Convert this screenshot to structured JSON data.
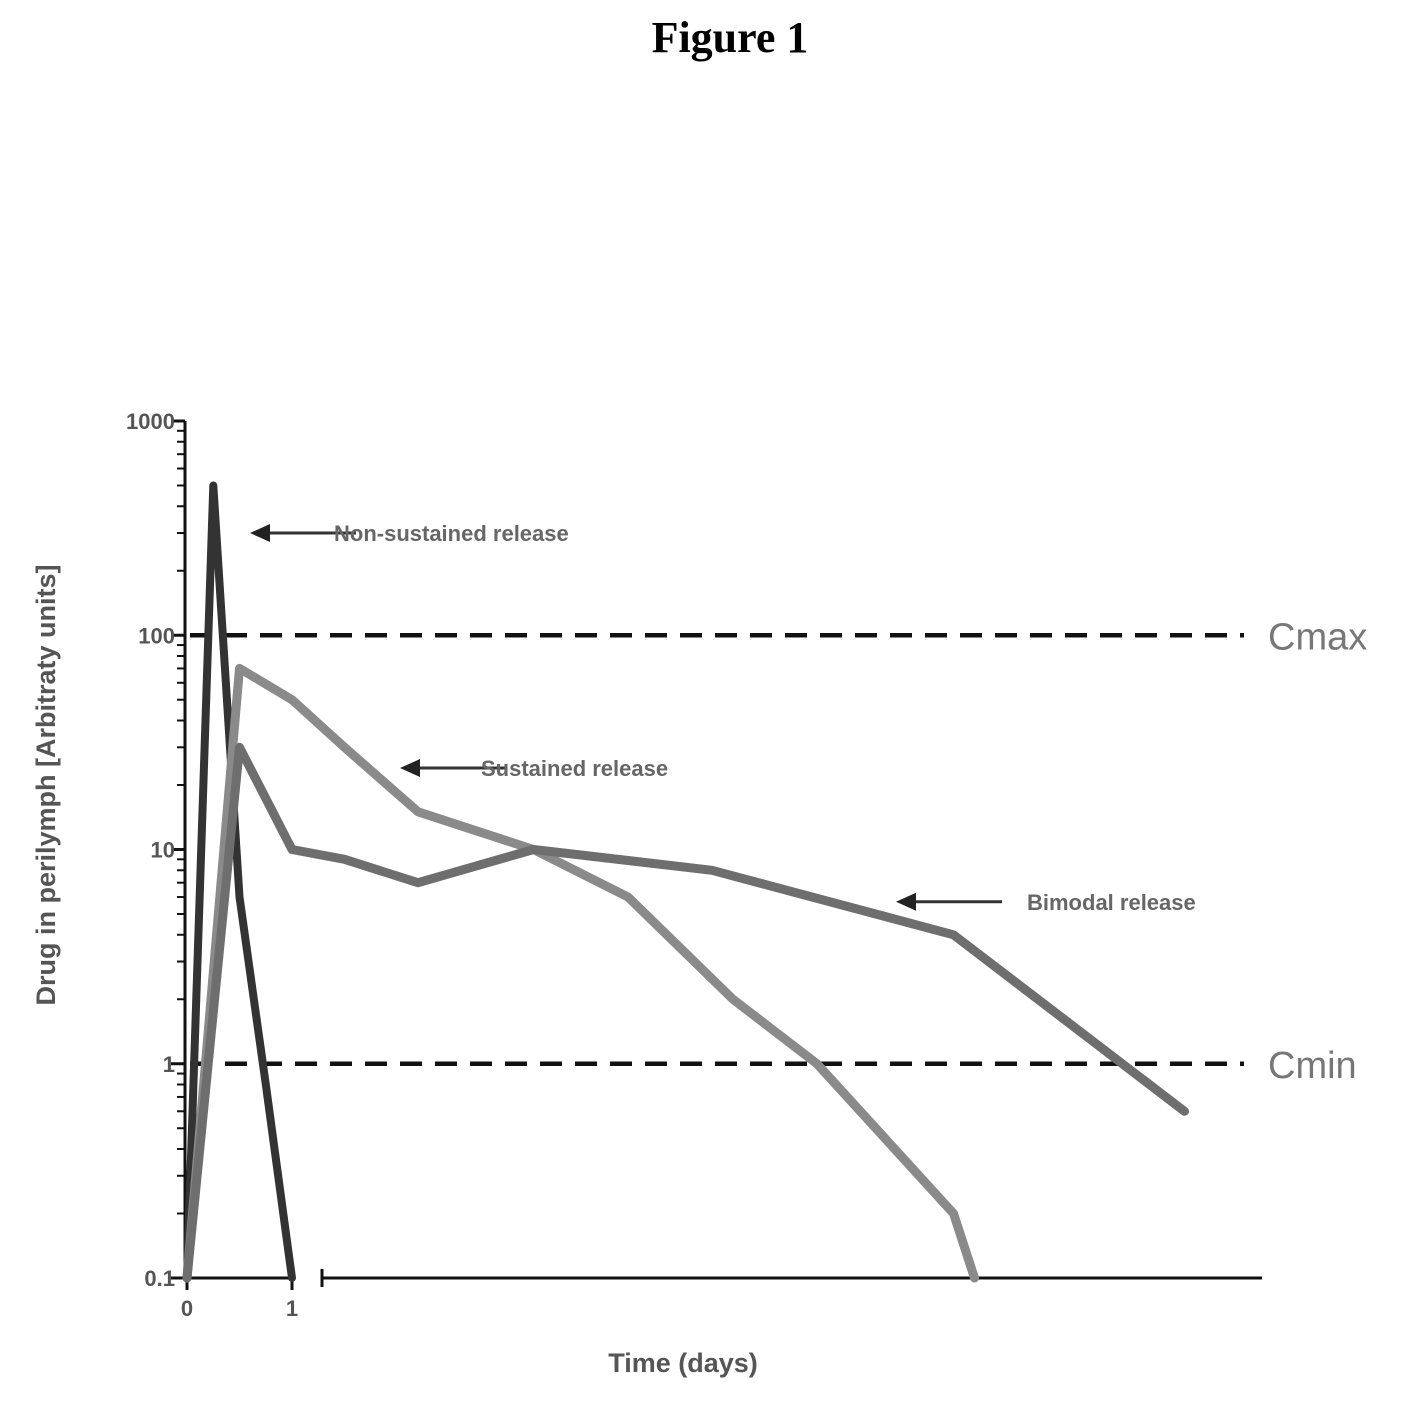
{
  "figure_title": "Figure 1",
  "chart_data": {
    "type": "line",
    "title": "",
    "xlabel": "Time (days)",
    "ylabel": "Drug in perilymph [Arbitraty units]",
    "yscale": "log",
    "ylim": [
      0.1,
      1000
    ],
    "y_ticks": [
      "0.1",
      "1",
      "10",
      "100",
      "1000"
    ],
    "x_ticks": [
      "0",
      "1"
    ],
    "x_axis_break": true,
    "grid": false,
    "legend": "none",
    "series": [
      {
        "color": "#333333",
        "x": [
          0,
          0.25,
          0.5,
          0.75,
          1.0
        ],
        "y": [
          0.1,
          500,
          6,
          0.8,
          0.1
        ]
      },
      {
        "color": "#8a8a8a",
        "x": [
          0,
          0.5,
          1.0,
          1.5,
          2.2,
          3.3,
          4.2,
          5.2,
          6.0,
          7.3,
          7.5
        ],
        "y": [
          0.1,
          70,
          50,
          30,
          15,
          10,
          6,
          2,
          1,
          0.2,
          0.1
        ]
      },
      {
        "color": "#6e6e6e",
        "x": [
          0,
          0.5,
          1.0,
          1.5,
          2.2,
          3.3,
          5.0,
          7.3,
          9.5
        ],
        "y": [
          0.1,
          30,
          10,
          9,
          7,
          10,
          8,
          4,
          0.6
        ]
      }
    ],
    "reference_lines": [
      {
        "label": "Cmax",
        "y": 100
      },
      {
        "label": "Cmin",
        "y": 1
      }
    ],
    "annotations": [
      {
        "text": "Non-sustained release",
        "x": 1.4,
        "y": 300
      },
      {
        "text": "Sustained release",
        "x": 2.8,
        "y": 24
      },
      {
        "text": "Bimodal release",
        "x": 8.0,
        "y": 5.7
      }
    ]
  }
}
